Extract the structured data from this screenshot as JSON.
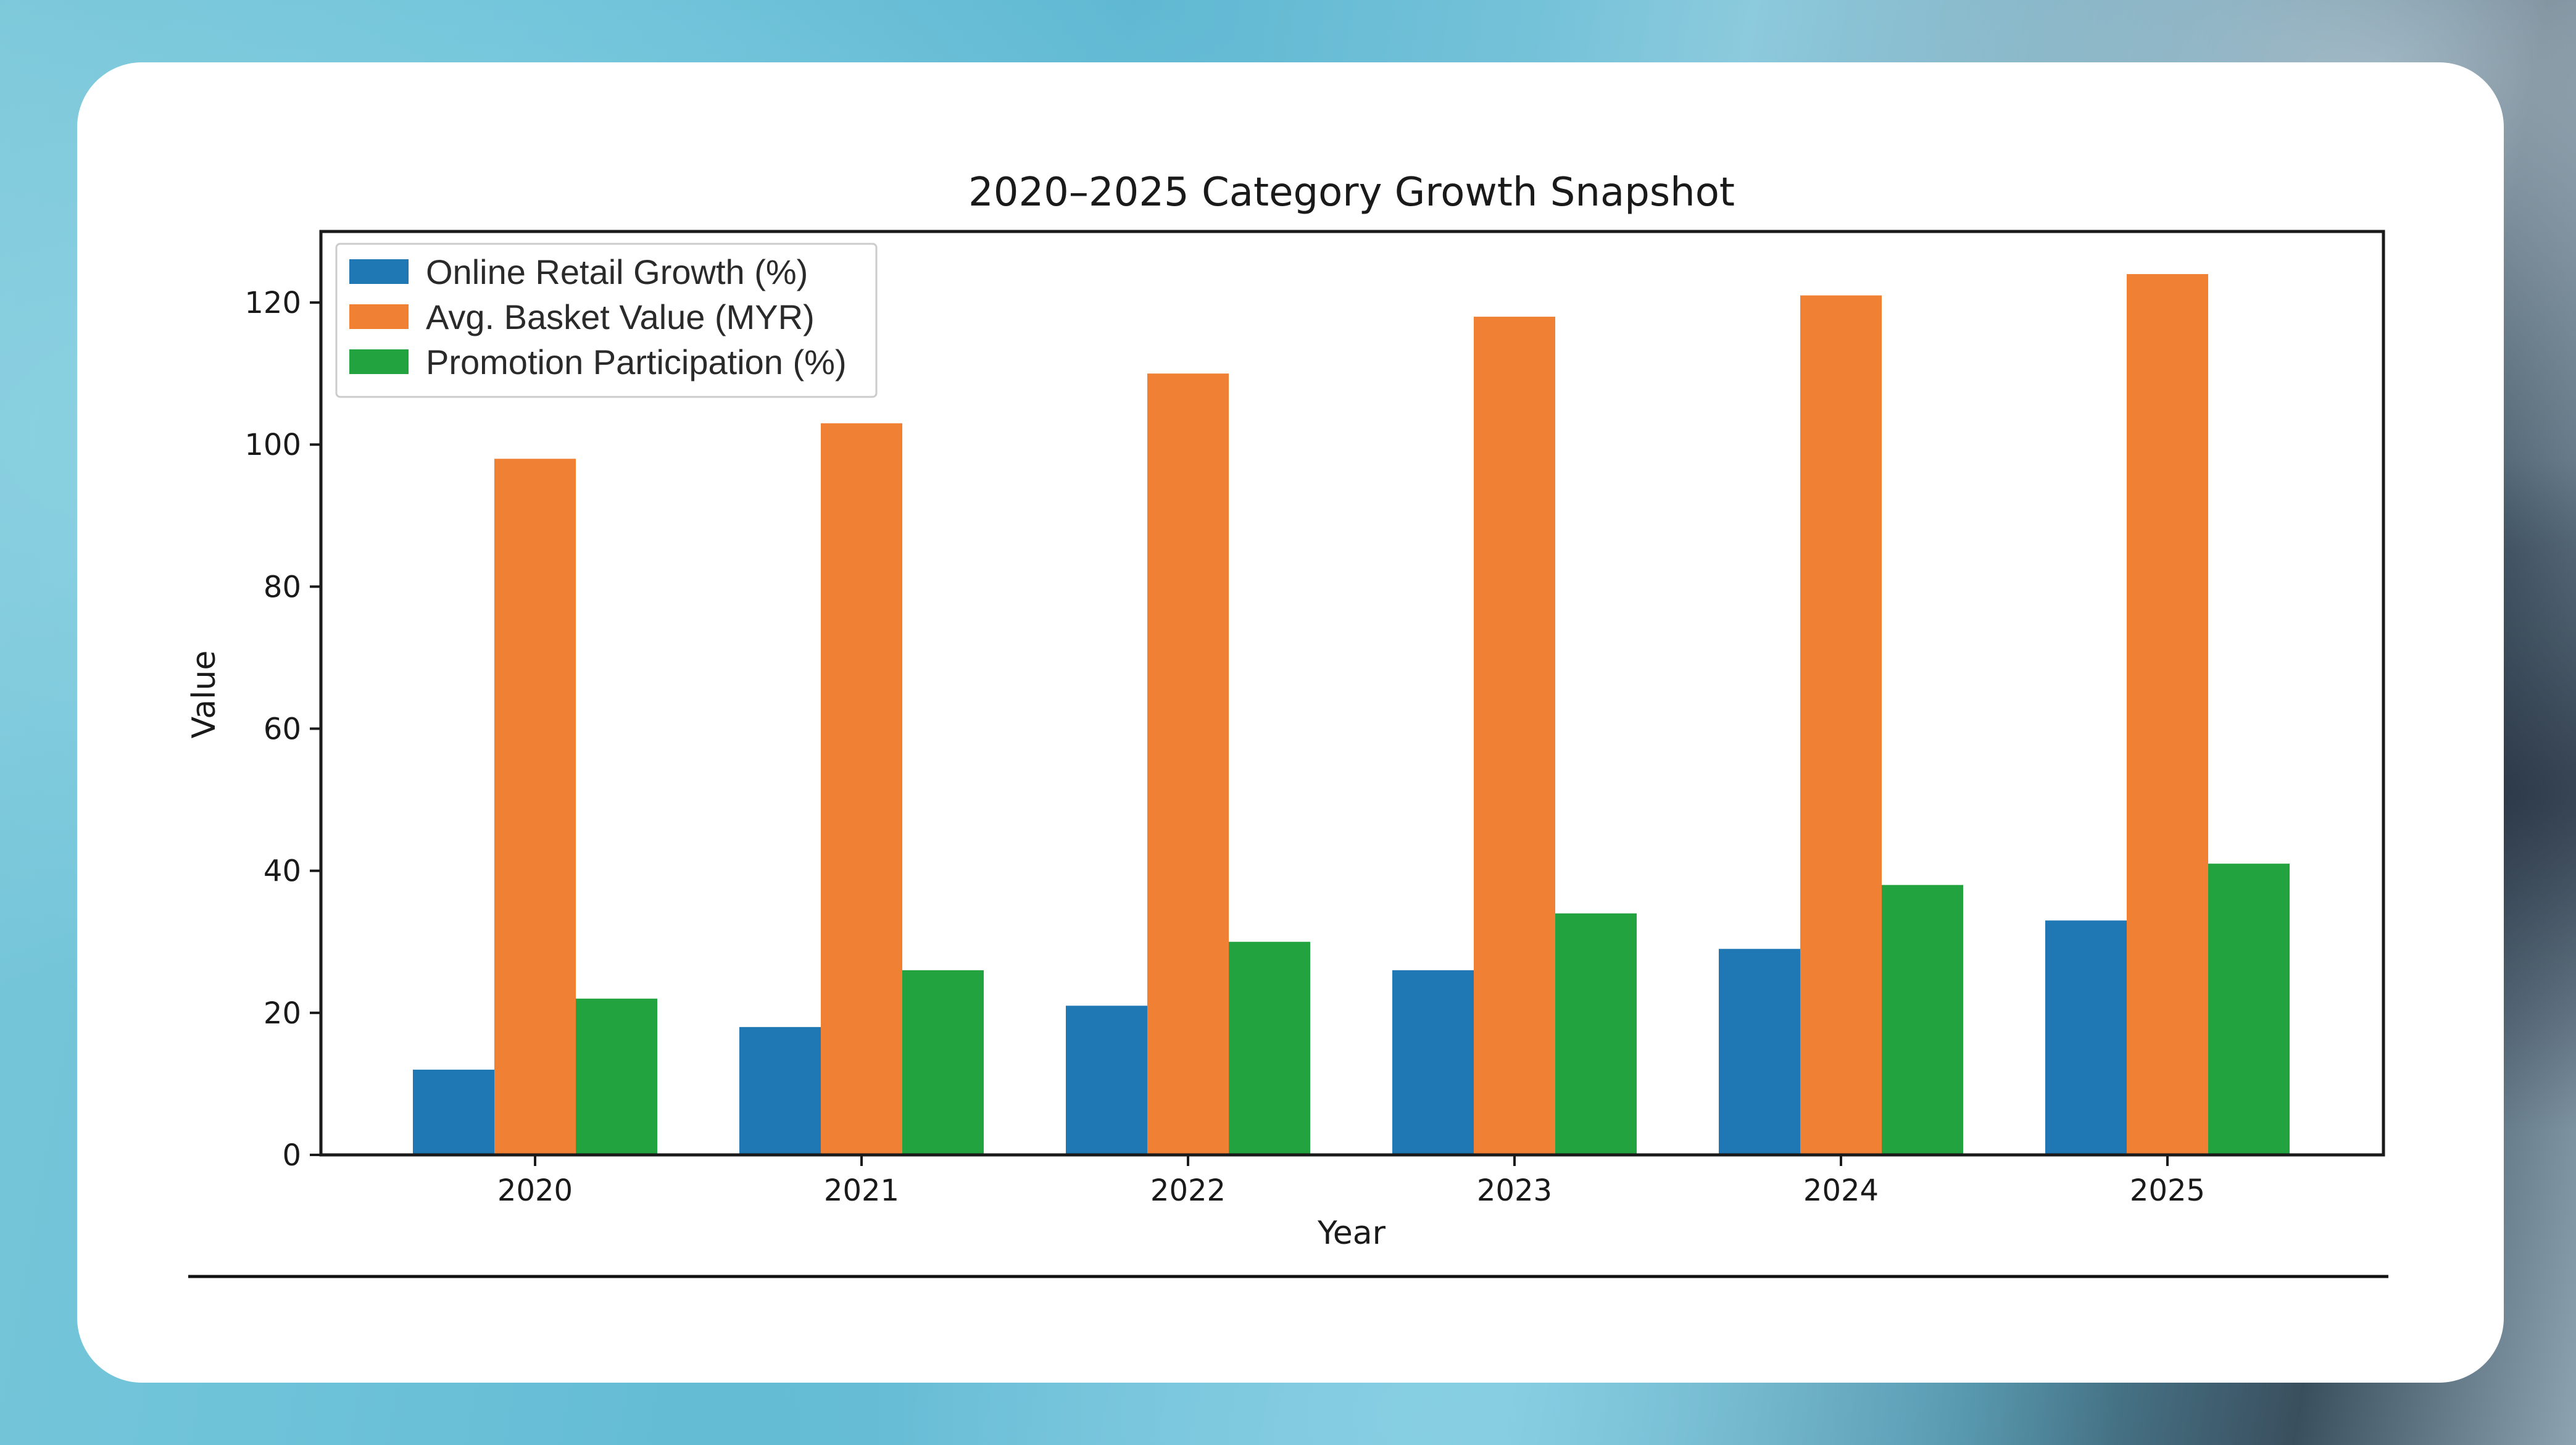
{
  "chart_data": {
    "type": "bar",
    "title": "2020–2025 Category Growth Snapshot",
    "xlabel": "Year",
    "ylabel": "Value",
    "categories": [
      "2020",
      "2021",
      "2022",
      "2023",
      "2024",
      "2025"
    ],
    "series": [
      {
        "name": "Online Retail Growth (%)",
        "color": "#1f77b4",
        "values": [
          12,
          18,
          21,
          26,
          29,
          33
        ]
      },
      {
        "name": "Avg. Basket Value (MYR)",
        "color": "#ef8034",
        "values": [
          98,
          103,
          110,
          118,
          121,
          124
        ]
      },
      {
        "name": "Promotion Participation (%)",
        "color": "#22a33f",
        "values": [
          22,
          26,
          30,
          34,
          38,
          41
        ]
      }
    ],
    "ylim": [
      0,
      130
    ],
    "yticks": [
      0,
      20,
      40,
      60,
      80,
      100,
      120
    ],
    "grid": false,
    "legend_position": "top-left"
  }
}
